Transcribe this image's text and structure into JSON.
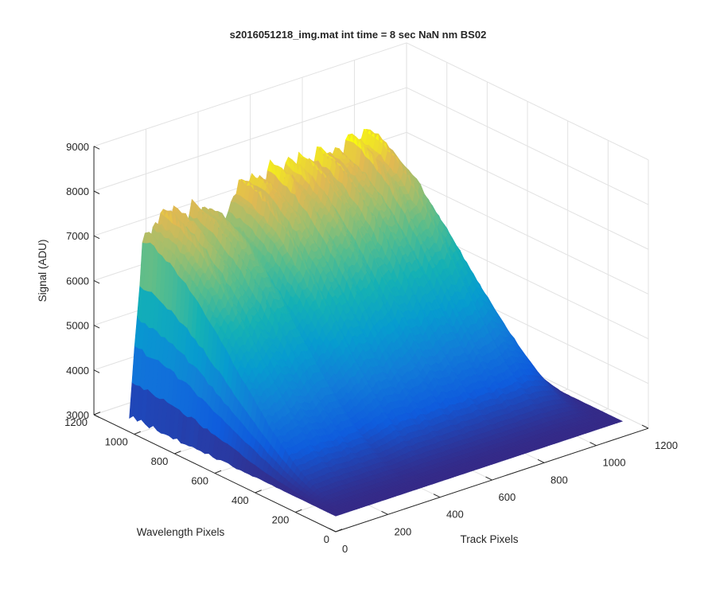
{
  "chart_data": {
    "type": "surface",
    "title": "s2016051218_img.mat int time = 8 sec  NaN nm BS02",
    "xlabel": "Track Pixels",
    "ylabel": "Wavelength Pixels",
    "zlabel": "Signal (ADU)",
    "xlim": [
      0,
      1200
    ],
    "ylim": [
      0,
      1200
    ],
    "zlim": [
      3000,
      9000
    ],
    "x_ticks": [
      0,
      200,
      400,
      600,
      800,
      1000,
      1200
    ],
    "y_ticks": [
      0,
      200,
      400,
      600,
      800,
      1000,
      1200
    ],
    "z_ticks": [
      3000,
      4000,
      5000,
      6000,
      7000,
      8000,
      9000
    ],
    "x_tick_labels": [
      "0",
      "200",
      "400",
      "600",
      "800",
      "1000",
      "1200"
    ],
    "y_tick_labels": [
      "0",
      "200",
      "400",
      "600",
      "800",
      "1000",
      "1200"
    ],
    "z_tick_labels": [
      "3000",
      "4000",
      "5000",
      "6000",
      "7000",
      "8000",
      "9000"
    ],
    "grid": true,
    "colormap": "parula",
    "data_extent": {
      "track": [
        0,
        1100
      ],
      "wavelength": [
        0,
        1024
      ]
    },
    "baseline": 3350,
    "peak_along_back_edge": {
      "track": [
        0,
        50,
        100,
        150,
        200,
        300,
        350,
        400,
        450,
        500,
        600,
        700,
        800,
        850,
        900,
        1000,
        1050,
        1100
      ],
      "signal": [
        3350,
        7050,
        7500,
        7550,
        7400,
        7400,
        6750,
        7600,
        7700,
        7700,
        7750,
        7750,
        7700,
        7800,
        7900,
        7100,
        5100,
        3350
      ]
    }
  }
}
